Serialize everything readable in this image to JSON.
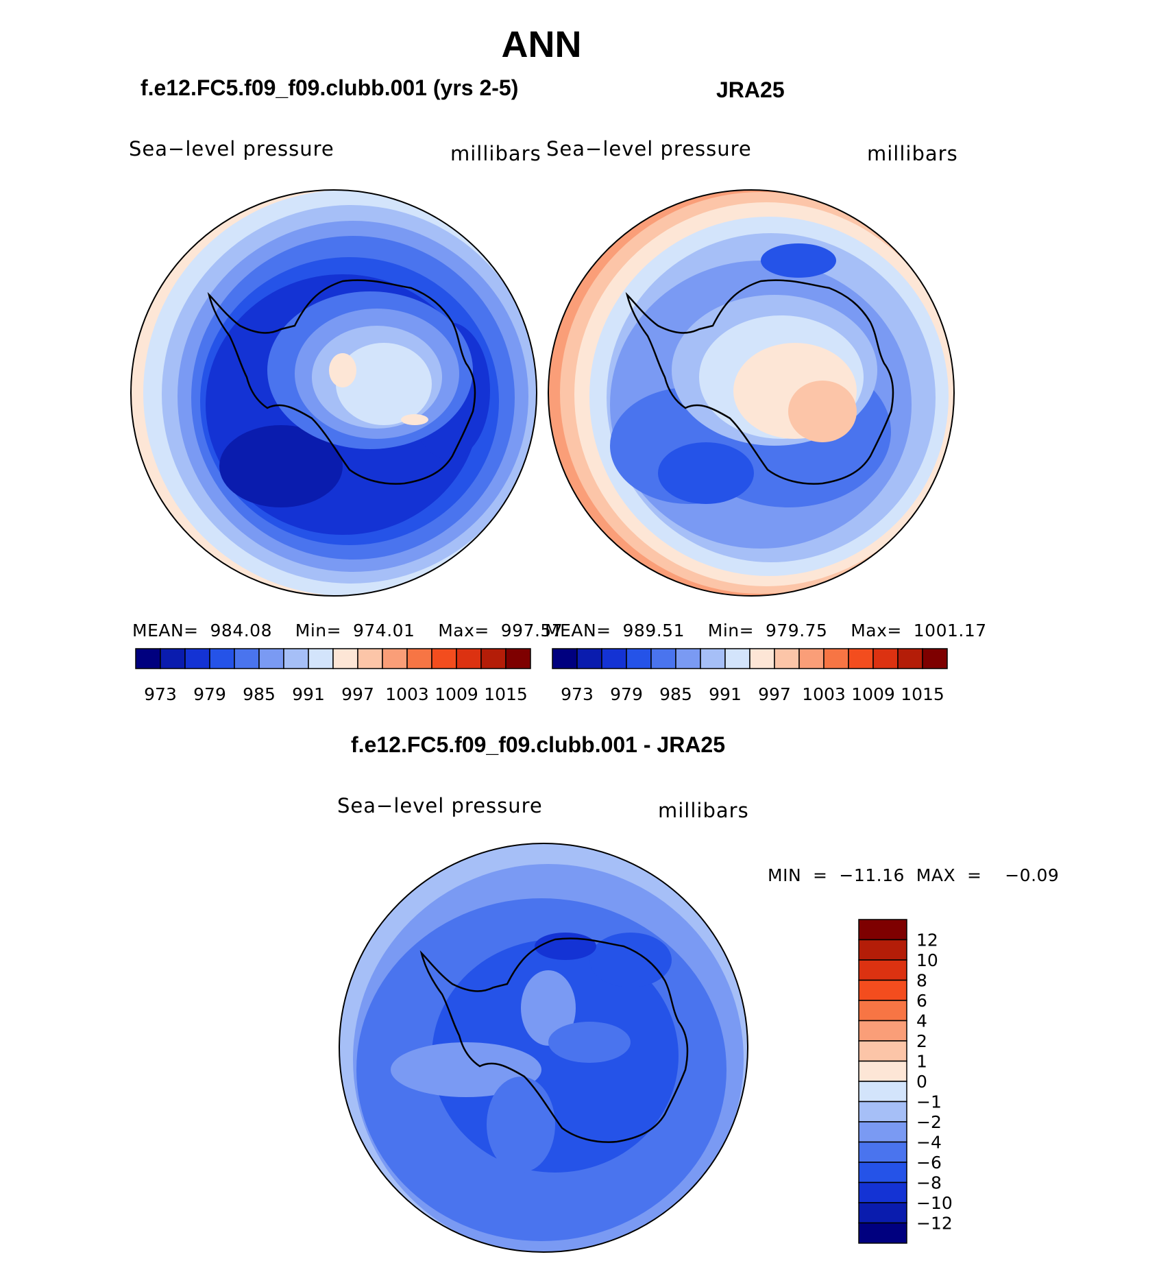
{
  "title": "ANN",
  "panels": [
    {
      "title": "f.e12.FC5.f09_f09.clubb.001 (yrs 2-5)",
      "variable": "Sea−level pressure",
      "units": "millibars",
      "stats": "MEAN=  984.08    Min=  974.01    Max=  997.57"
    },
    {
      "title": "JRA25",
      "variable": "Sea−level pressure",
      "units": "millibars",
      "stats": "MEAN=  989.51    Min=  979.75    Max=  1001.17"
    }
  ],
  "diff_panel": {
    "title": "f.e12.FC5.f09_f09.clubb.001 - JRA25",
    "variable": "Sea−level pressure",
    "units": "millibars",
    "stats": "MIN  =  −11.16  MAX  =    −0.09"
  },
  "abs_colorbar": {
    "colors": [
      "#00007f",
      "#0a1cae",
      "#1433d4",
      "#2553e8",
      "#4a74ee",
      "#7a9af3",
      "#a6bff7",
      "#d3e4fb",
      "#fde6d6",
      "#fcc5a8",
      "#fa9e78",
      "#f77544",
      "#f34d1e",
      "#dc3211",
      "#b41d08",
      "#7e0000"
    ],
    "tick_labels": [
      "973",
      "979",
      "985",
      "991",
      "997",
      "1003",
      "1009",
      "1015"
    ]
  },
  "diff_colorbar": {
    "colors": [
      "#00007f",
      "#0a1cae",
      "#1433d4",
      "#2553e8",
      "#4a74ee",
      "#7a9af3",
      "#a6bff7",
      "#d3e4fb",
      "#fde6d6",
      "#fcc5a8",
      "#fa9e78",
      "#f77544",
      "#f34d1e",
      "#dc3211",
      "#b41d08",
      "#7e0000"
    ],
    "tick_labels": [
      "−12",
      "−10",
      "−8",
      "−6",
      "−4",
      "−2",
      "−1",
      "0",
      "1",
      "2",
      "4",
      "6",
      "8",
      "10",
      "12"
    ]
  }
}
